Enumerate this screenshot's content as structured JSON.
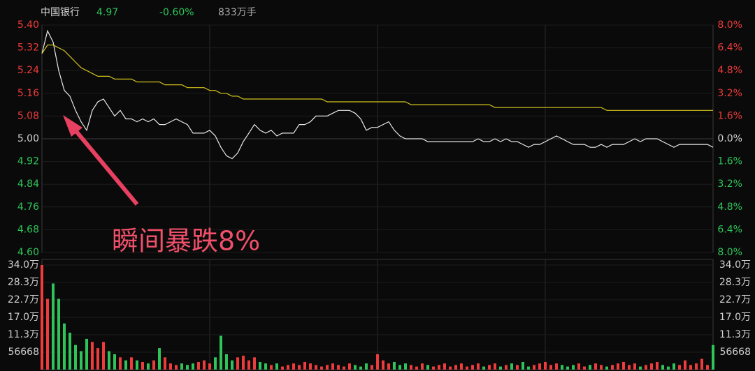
{
  "chart_data": [
    {
      "type": "line",
      "title": "中国银行",
      "last_price": 4.97,
      "change": "-0.60%",
      "volume_text": "833万手",
      "annotation": "瞬间暴跌8%",
      "ylim": [
        4.6,
        5.4
      ],
      "yticks": [
        {
          "value": 5.4,
          "label": "5.40"
        },
        5.32,
        5.24,
        5.16,
        5.08,
        {
          "value": 5.0,
          "label": "5.00"
        },
        4.92,
        4.84,
        4.76,
        4.68,
        {
          "value": 4.6,
          "label": "4.60"
        }
      ],
      "y2lim": [
        -8,
        8
      ],
      "y2ticks": [
        {
          "value": 8,
          "label": "8.0%"
        },
        {
          "value": 6.4,
          "label": "6.4%"
        },
        {
          "value": 4.8,
          "label": "4.8%"
        },
        {
          "value": 3.2,
          "label": "3.2%"
        },
        {
          "value": 1.6,
          "label": "1.6%"
        },
        {
          "value": 0,
          "label": "0.0%"
        },
        {
          "value": -1.6,
          "label": "1.6%"
        },
        {
          "value": -3.2,
          "label": "3.2%"
        },
        {
          "value": -4.8,
          "label": "4.8%"
        },
        {
          "value": -6.4,
          "label": "6.4%"
        },
        {
          "value": -8,
          "label": "8.0%"
        }
      ],
      "grid": true,
      "series": [
        {
          "color": "#e8e8e8",
          "values": [
            5.3,
            5.38,
            5.34,
            5.24,
            5.17,
            5.15,
            5.1,
            5.06,
            5.03,
            5.1,
            5.13,
            5.14,
            5.11,
            5.08,
            5.1,
            5.07,
            5.07,
            5.06,
            5.07,
            5.06,
            5.07,
            5.05,
            5.05,
            5.06,
            5.07,
            5.06,
            5.05,
            5.02,
            5.02,
            5.02,
            5.03,
            5.01,
            4.97,
            4.94,
            4.93,
            4.95,
            4.99,
            5.02,
            5.05,
            5.03,
            5.02,
            5.03,
            5.01,
            5.02,
            5.02,
            5.02,
            5.05,
            5.05,
            5.06,
            5.08,
            5.08,
            5.08,
            5.09,
            5.1,
            5.1,
            5.1,
            5.09,
            5.07,
            5.03,
            5.04,
            5.04,
            5.05,
            5.06,
            5.03,
            5.01,
            5.0,
            5.0,
            5.0,
            5.0,
            4.99,
            4.99,
            4.99,
            4.99,
            4.99,
            4.99,
            4.99,
            4.99,
            4.99,
            5.0,
            4.99,
            4.99,
            5.0,
            4.99,
            5.0,
            4.99,
            4.99,
            4.98,
            4.97,
            4.98,
            4.98,
            4.99,
            5.0,
            5.01,
            5.0,
            4.99,
            4.98,
            4.98,
            4.98,
            4.97,
            4.97,
            4.98,
            4.97,
            4.98,
            4.98,
            4.98,
            4.99,
            5.0,
            4.99,
            5.0,
            5.0,
            5.0,
            4.99,
            4.98,
            4.97,
            4.98,
            4.98,
            4.98,
            4.98,
            4.98,
            4.98,
            4.97
          ]
        },
        {
          "color": "#d4c41a",
          "values": [
            5.3,
            5.33,
            5.33,
            5.32,
            5.31,
            5.29,
            5.27,
            5.25,
            5.24,
            5.23,
            5.22,
            5.22,
            5.22,
            5.21,
            5.21,
            5.21,
            5.21,
            5.2,
            5.2,
            5.2,
            5.2,
            5.2,
            5.19,
            5.19,
            5.19,
            5.19,
            5.18,
            5.18,
            5.18,
            5.18,
            5.17,
            5.17,
            5.16,
            5.16,
            5.15,
            5.15,
            5.14,
            5.14,
            5.14,
            5.14,
            5.14,
            5.14,
            5.14,
            5.14,
            5.14,
            5.14,
            5.14,
            5.14,
            5.14,
            5.14,
            5.14,
            5.13,
            5.13,
            5.13,
            5.13,
            5.13,
            5.13,
            5.13,
            5.13,
            5.13,
            5.13,
            5.13,
            5.13,
            5.13,
            5.13,
            5.13,
            5.12,
            5.12,
            5.12,
            5.12,
            5.12,
            5.12,
            5.12,
            5.12,
            5.12,
            5.12,
            5.12,
            5.12,
            5.12,
            5.12,
            5.12,
            5.11,
            5.11,
            5.11,
            5.11,
            5.11,
            5.11,
            5.11,
            5.11,
            5.11,
            5.11,
            5.11,
            5.11,
            5.11,
            5.11,
            5.11,
            5.11,
            5.11,
            5.11,
            5.11,
            5.11,
            5.1,
            5.1,
            5.1,
            5.1,
            5.1,
            5.1,
            5.1,
            5.1,
            5.1,
            5.1,
            5.1,
            5.1,
            5.1,
            5.1,
            5.1,
            5.1,
            5.1,
            5.1,
            5.1,
            5.1
          ]
        }
      ]
    },
    {
      "type": "bar",
      "ylim": [
        0,
        340008
      ],
      "yticks": [
        {
          "value": 340008,
          "label": "34.0万"
        },
        {
          "value": 283340,
          "label": "28.3万"
        },
        {
          "value": 226672,
          "label": "22.7万"
        },
        {
          "value": 170004,
          "label": "17.0万"
        },
        {
          "value": 113336,
          "label": "11.3万"
        },
        56668
      ],
      "up_color": "#ee3b3b",
      "down_color": "#2ec45a",
      "values": [
        340000,
        230000,
        280000,
        230000,
        150000,
        120000,
        80000,
        60000,
        100000,
        90000,
        70000,
        90000,
        60000,
        50000,
        40000,
        30000,
        40000,
        30000,
        25000,
        20000,
        30000,
        70000,
        40000,
        20000,
        15000,
        20000,
        15000,
        20000,
        25000,
        30000,
        20000,
        40000,
        110000,
        50000,
        30000,
        40000,
        45000,
        30000,
        40000,
        25000,
        20000,
        15000,
        20000,
        10000,
        15000,
        20000,
        15000,
        25000,
        20000,
        15000,
        10000,
        15000,
        20000,
        15000,
        10000,
        20000,
        15000,
        10000,
        20000,
        15000,
        50000,
        30000,
        20000,
        25000,
        15000,
        20000,
        15000,
        10000,
        20000,
        15000,
        10000,
        15000,
        20000,
        10000,
        15000,
        20000,
        10000,
        15000,
        20000,
        10000,
        15000,
        20000,
        10000,
        15000,
        20000,
        15000,
        25000,
        10000,
        15000,
        20000,
        25000,
        15000,
        20000,
        15000,
        10000,
        15000,
        20000,
        10000,
        15000,
        20000,
        15000,
        10000,
        15000,
        20000,
        25000,
        15000,
        20000,
        10000,
        15000,
        20000,
        25000,
        15000,
        10000,
        20000,
        15000,
        30000,
        15000,
        20000,
        35000,
        15000,
        80000
      ]
    }
  ]
}
